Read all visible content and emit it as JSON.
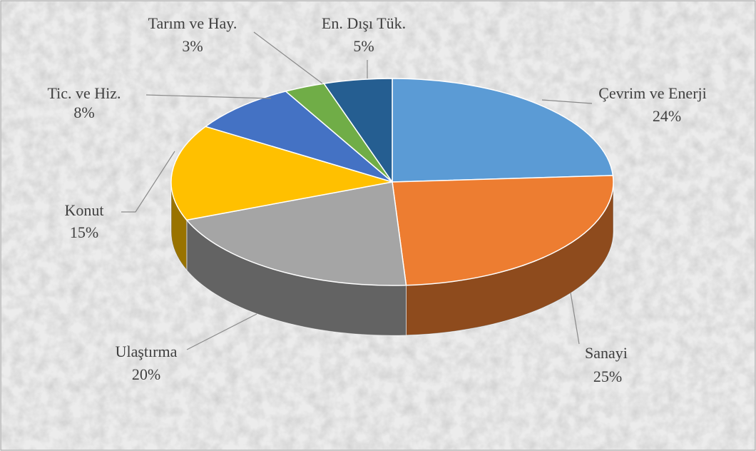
{
  "chart_data": {
    "type": "pie",
    "categories": [
      "Çevrim ve Enerji",
      "Sanayi",
      "Ulaştırma",
      "Konut",
      "Tic. ve Hiz.",
      "Tarım ve Hay.",
      "En. Dışı Tük."
    ],
    "values": [
      24,
      25,
      20,
      15,
      8,
      3,
      5
    ],
    "value_labels": [
      "24%",
      "25%",
      "20%",
      "15%",
      "8%",
      "3%",
      "5%"
    ],
    "colors": [
      "#5b9bd5",
      "#ed7d31",
      "#a5a5a5",
      "#ffc000",
      "#4472c4",
      "#70ad47",
      "#255e91"
    ]
  }
}
